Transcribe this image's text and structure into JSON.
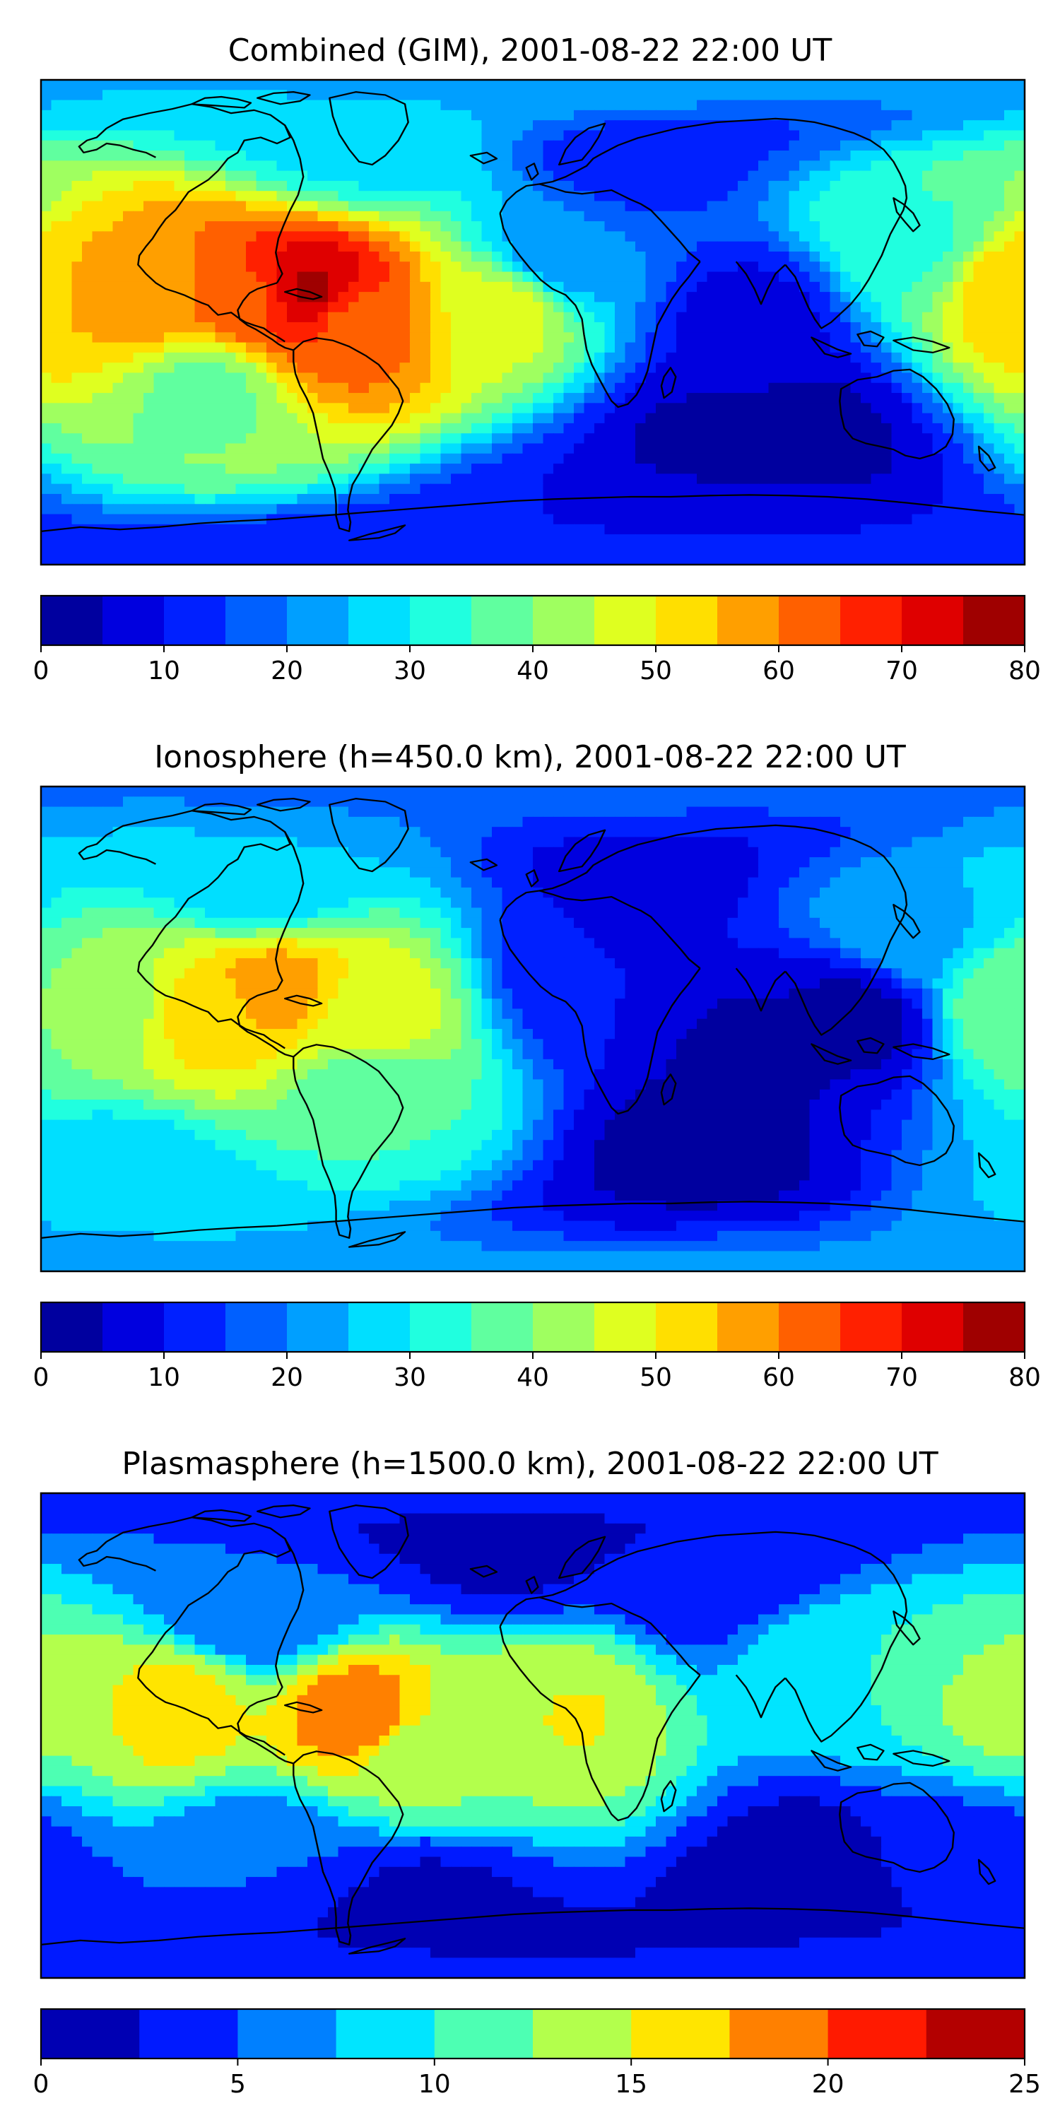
{
  "chart_data": [
    {
      "type": "heatmap",
      "title": "Combined (GIM), 2001-08-22 22:00 UT",
      "map": "world-coastlines",
      "colormap": "jet",
      "colorbar": {
        "levels": [
          0,
          5,
          10,
          15,
          20,
          25,
          30,
          35,
          40,
          45,
          50,
          55,
          60,
          65,
          70,
          75,
          80
        ],
        "ticks": [
          0,
          10,
          20,
          30,
          40,
          50,
          60,
          70,
          80
        ],
        "placement": "bottom"
      },
      "features": [
        {
          "lon": -80,
          "lat": 12,
          "value": 76
        },
        {
          "lon": -105,
          "lat": 8,
          "value": 64
        },
        {
          "lon": -65,
          "lat": 0,
          "value": 62
        },
        {
          "lon": -140,
          "lat": 10,
          "value": 58
        },
        {
          "lon": 178,
          "lat": 12,
          "value": 55
        },
        {
          "lon": -10,
          "lat": 5,
          "value": 48
        },
        {
          "lon": -60,
          "lat": 65,
          "value": 28
        },
        {
          "lon": 140,
          "lat": 30,
          "value": 34
        },
        {
          "lon": -120,
          "lat": -25,
          "value": 38
        },
        {
          "lon": 10,
          "lat": 25,
          "value": 20
        },
        {
          "lon": 80,
          "lat": 0,
          "value": 8
        },
        {
          "lon": 60,
          "lat": -45,
          "value": 4
        },
        {
          "lon": 100,
          "lat": -40,
          "value": 3
        },
        {
          "lon": 40,
          "lat": 60,
          "value": 12
        },
        {
          "lon": 20,
          "lat": -72,
          "value": 10
        }
      ]
    },
    {
      "type": "heatmap",
      "title": "Ionosphere  (h=450.0 km), 2001-08-22 22:00 UT",
      "map": "world-coastlines",
      "colormap": "jet",
      "colorbar": {
        "levels": [
          0,
          5,
          10,
          15,
          20,
          25,
          30,
          35,
          40,
          45,
          50,
          55,
          60,
          65,
          70,
          75,
          80
        ],
        "ticks": [
          0,
          10,
          20,
          30,
          40,
          50,
          60,
          70,
          80
        ],
        "placement": "bottom"
      },
      "features": [
        {
          "lon": -95,
          "lat": 15,
          "value": 58
        },
        {
          "lon": -120,
          "lat": 5,
          "value": 52
        },
        {
          "lon": -60,
          "lat": 5,
          "value": 48
        },
        {
          "lon": -155,
          "lat": 10,
          "value": 42
        },
        {
          "lon": 175,
          "lat": 10,
          "value": 40
        },
        {
          "lon": -60,
          "lat": -25,
          "value": 35
        },
        {
          "lon": -100,
          "lat": 55,
          "value": 25
        },
        {
          "lon": 140,
          "lat": 35,
          "value": 24
        },
        {
          "lon": 20,
          "lat": 20,
          "value": 10
        },
        {
          "lon": 80,
          "lat": -10,
          "value": 4
        },
        {
          "lon": 60,
          "lat": -45,
          "value": 3
        },
        {
          "lon": 120,
          "lat": 5,
          "value": 3
        },
        {
          "lon": 40,
          "lat": 55,
          "value": 8
        },
        {
          "lon": -150,
          "lat": -55,
          "value": 26
        }
      ]
    },
    {
      "type": "heatmap",
      "title": "Plasmasphere (h=1500.0 km), 2001-08-22 22:00 UT",
      "map": "world-coastlines",
      "colormap": "jet",
      "colorbar": {
        "levels": [
          0,
          2.5,
          5,
          7.5,
          10,
          12.5,
          15,
          17.5,
          20,
          22.5,
          25
        ],
        "ticks": [
          0,
          5,
          10,
          15,
          20,
          25
        ],
        "placement": "bottom"
      },
      "features": [
        {
          "lon": -65,
          "lat": 8,
          "value": 19
        },
        {
          "lon": -130,
          "lat": 10,
          "value": 16
        },
        {
          "lon": 10,
          "lat": 10,
          "value": 15.5
        },
        {
          "lon": 0,
          "lat": 15,
          "value": 13
        },
        {
          "lon": -40,
          "lat": -10,
          "value": 13
        },
        {
          "lon": 175,
          "lat": 10,
          "value": 13
        },
        {
          "lon": 110,
          "lat": 25,
          "value": 10
        },
        {
          "lon": -100,
          "lat": 45,
          "value": 5
        },
        {
          "lon": 60,
          "lat": 55,
          "value": 3
        },
        {
          "lon": -10,
          "lat": 65,
          "value": 2
        },
        {
          "lon": -100,
          "lat": -45,
          "value": 5
        },
        {
          "lon": 100,
          "lat": -50,
          "value": 1
        },
        {
          "lon": -40,
          "lat": -60,
          "value": 2
        },
        {
          "lon": 160,
          "lat": -45,
          "value": 4
        }
      ]
    }
  ]
}
